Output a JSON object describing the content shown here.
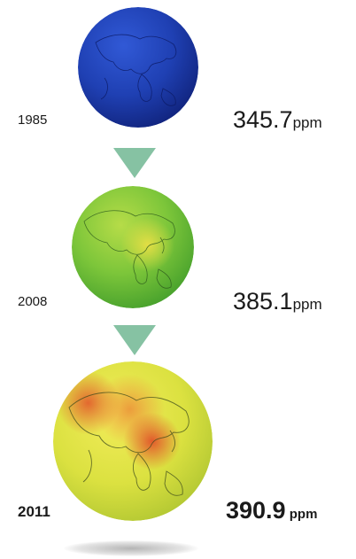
{
  "stages": [
    {
      "year": "1985",
      "value": "345.7",
      "unit": "ppm"
    },
    {
      "year": "2008",
      "value": "385.1",
      "unit": "ppm"
    },
    {
      "year": "2011",
      "value": "390.9",
      "unit": "ppm"
    }
  ],
  "colors": {
    "globe_1985": "#1c3fae",
    "globe_2008": "#7cc83a",
    "globe_2011": "#e7e23d",
    "hotspot_2011": "#e2522a",
    "arrow": "#86c2a3"
  }
}
